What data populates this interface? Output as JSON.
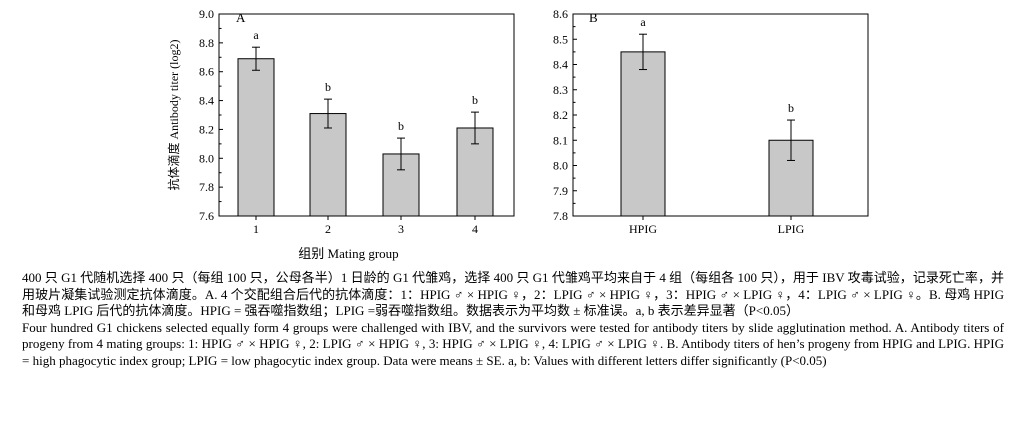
{
  "chart_data": [
    {
      "type": "bar",
      "panel_label": "A",
      "categories": [
        "1",
        "2",
        "3",
        "4"
      ],
      "values": [
        8.69,
        8.31,
        8.03,
        8.21
      ],
      "errors": [
        0.08,
        0.1,
        0.11,
        0.11
      ],
      "significance_letters": [
        "a",
        "b",
        "b",
        "b"
      ],
      "xlabel": "组别 Mating group",
      "ylabel": "抗体滴度 Antibody titer (log2)",
      "ylim": [
        7.6,
        9.0
      ],
      "yticks": [
        "7.6",
        "7.8",
        "8.0",
        "8.2",
        "8.4",
        "8.6",
        "8.8",
        "9.0"
      ],
      "bar_color": "#c8c8c8",
      "grid": false
    },
    {
      "type": "bar",
      "panel_label": "B",
      "categories": [
        "HPIG",
        "LPIG"
      ],
      "values": [
        8.45,
        8.1
      ],
      "errors": [
        0.07,
        0.08
      ],
      "significance_letters": [
        "a",
        "b"
      ],
      "xlabel": "",
      "ylabel": "",
      "ylim": [
        7.8,
        8.6
      ],
      "yticks": [
        "7.8",
        "7.9",
        "8.0",
        "8.1",
        "8.2",
        "8.3",
        "8.4",
        "8.5",
        "8.6"
      ],
      "bar_color": "#c8c8c8",
      "grid": false
    }
  ],
  "caption": {
    "zh": "400 只 G1 代随机选择 400 只（每组 100 只，公母各半）1 日龄的 G1 代雏鸡，选择 400 只 G1 代雏鸡平均来自于 4 组（每组各 100 只），用于 IBV 攻毒试验，记录死亡率，并用玻片凝集试验测定抗体滴度。A. 4 个交配组合后代的抗体滴度：1：HPIG ♂ × HPIG ♀，2：LPIG ♂ × HPIG ♀，3：HPIG ♂ × LPIG ♀，4：LPIG ♂ × LPIG ♀。B. 母鸡 HPIG 和母鸡 LPIG 后代的抗体滴度。HPIG = 强吞噬指数组；LPIG =弱吞噬指数组。数据表示为平均数 ± 标准误。a, b 表示差异显著（P<0.05）",
    "en": "Four hundred G1 chickens selected equally form 4 groups were challenged with IBV, and the survivors were tested for antibody titers by slide agglutination method. A. Antibody titers of progeny from 4 mating groups: 1: HPIG ♂ × HPIG ♀, 2: LPIG ♂ × HPIG ♀, 3: HPIG ♂ × LPIG ♀, 4: LPIG ♂ × LPIG ♀. B. Antibody titers of hen’s progeny from HPIG and LPIG. HPIG = high phagocytic index group; LPIG = low phagocytic index group. Data were means ± SE. a, b: Values with different letters differ significantly (P<0.05)"
  }
}
